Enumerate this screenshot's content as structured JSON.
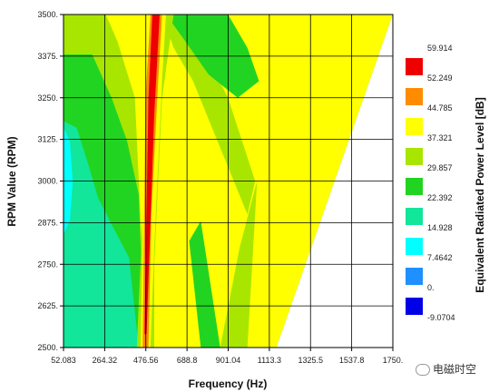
{
  "chart_data": {
    "type": "heatmap",
    "xlabel": "Frequency (Hz)",
    "ylabel": "RPM Value (RPM)",
    "x_ticks": [
      "52.083",
      "264.32",
      "476.56",
      "688.8",
      "901.04",
      "1113.3",
      "1325.5",
      "1537.8",
      "1750."
    ],
    "y_ticks": [
      "2500",
      "2625",
      "2750",
      "2875",
      "3000",
      "3125",
      "3250",
      "3375",
      "3500"
    ],
    "xlim": [
      52.083,
      1750
    ],
    "ylim": [
      2500,
      3500
    ],
    "grid": true,
    "colorbar": {
      "title": "Equivalent Radiated Power Level [dB]",
      "levels": [
        "59.914",
        "52.249",
        "44.785",
        "37.321",
        "29.857",
        "22.392",
        "14.928",
        "7.4642",
        "0.",
        "-9.0704"
      ],
      "colors": [
        "#ee0000",
        "#ff8c00",
        "#ffff00",
        "#a8e600",
        "#22d422",
        "#11e69a",
        "#00ffff",
        "#1e90ff",
        "#0000e6"
      ]
    },
    "regions": [
      {
        "level": 2,
        "points": [
          [
            52,
            3500
          ],
          [
            360,
            3500
          ],
          [
            560,
            3500
          ],
          [
            1000,
            3500
          ],
          [
            1380,
            3500
          ],
          [
            1000,
            2500
          ],
          [
            52,
            2500
          ]
        ]
      },
      {
        "level": 3,
        "points": [
          [
            52,
            3500
          ],
          [
            270,
            3500
          ],
          [
            330,
            3420
          ],
          [
            420,
            3250
          ],
          [
            480,
            2500
          ],
          [
            52,
            2500
          ]
        ]
      },
      {
        "level": 4,
        "points": [
          [
            52,
            3380
          ],
          [
            200,
            3380
          ],
          [
            300,
            3250
          ],
          [
            380,
            3120
          ],
          [
            440,
            2960
          ],
          [
            470,
            2500
          ],
          [
            52,
            2500
          ]
        ]
      },
      {
        "level": 5,
        "points": [
          [
            52,
            3180
          ],
          [
            120,
            3160
          ],
          [
            180,
            3050
          ],
          [
            230,
            2950
          ],
          [
            300,
            2870
          ],
          [
            390,
            2770
          ],
          [
            440,
            2500
          ],
          [
            52,
            2500
          ]
        ]
      },
      {
        "level": 6,
        "points": [
          [
            52,
            3160
          ],
          [
            85,
            3120
          ],
          [
            100,
            3000
          ],
          [
            85,
            2880
          ],
          [
            52,
            2840
          ]
        ]
      },
      {
        "level": 2,
        "points": [
          [
            1080,
            3500
          ],
          [
            1750,
            3500
          ],
          [
            1150,
            2500
          ],
          [
            1000,
            2500
          ],
          [
            1050,
            3000
          ],
          [
            960,
            3250
          ]
        ]
      },
      {
        "level": 3,
        "points": [
          [
            860,
            2500
          ],
          [
            960,
            2800
          ],
          [
            1050,
            3000
          ],
          [
            1000,
            2500
          ]
        ]
      },
      {
        "level": 3,
        "points": [
          [
            560,
            3500
          ],
          [
            680,
            3500
          ],
          [
            900,
            3250
          ],
          [
            1040,
            3000
          ],
          [
            1000,
            2900
          ],
          [
            860,
            3100
          ],
          [
            720,
            3300
          ],
          [
            620,
            3400
          ]
        ]
      },
      {
        "level": 4,
        "points": [
          [
            580,
            3500
          ],
          [
            900,
            3500
          ],
          [
            1000,
            3400
          ],
          [
            1060,
            3300
          ],
          [
            950,
            3250
          ],
          [
            800,
            3320
          ],
          [
            680,
            3420
          ]
        ]
      },
      {
        "level": 4,
        "points": [
          [
            760,
            2500
          ],
          [
            860,
            2500
          ],
          [
            760,
            2880
          ],
          [
            700,
            2820
          ]
        ]
      },
      {
        "level": 4,
        "points": [
          [
            540,
            3500
          ],
          [
            560,
            3500
          ],
          [
            560,
            3420
          ],
          [
            520,
            3250
          ],
          [
            500,
            3000
          ],
          [
            480,
            2500
          ],
          [
            430,
            2500
          ],
          [
            470,
            3000
          ]
        ]
      },
      {
        "level": 3,
        "points": [
          [
            430,
            2500
          ],
          [
            520,
            2500
          ],
          [
            520,
            2750
          ],
          [
            560,
            3250
          ],
          [
            620,
            3500
          ],
          [
            540,
            3500
          ],
          [
            490,
            3250
          ],
          [
            460,
            2900
          ]
        ]
      },
      {
        "level": 2,
        "points": [
          [
            450,
            2500
          ],
          [
            500,
            2500
          ],
          [
            520,
            2800
          ],
          [
            560,
            3300
          ],
          [
            580,
            3500
          ],
          [
            480,
            3500
          ],
          [
            470,
            3250
          ]
        ]
      },
      {
        "level": 1,
        "points": [
          [
            460,
            2500
          ],
          [
            490,
            2500
          ],
          [
            505,
            2900
          ],
          [
            540,
            3300
          ],
          [
            560,
            3500
          ],
          [
            500,
            3500
          ],
          [
            475,
            3250
          ]
        ]
      },
      {
        "level": 0,
        "points": [
          [
            470,
            2540
          ],
          [
            480,
            2540
          ],
          [
            520,
            3200
          ],
          [
            548,
            3500
          ],
          [
            510,
            3500
          ],
          [
            490,
            3250
          ]
        ]
      }
    ],
    "edge": [
      [
        1750,
        3500
      ],
      [
        1150,
        2500
      ]
    ]
  },
  "watermark": "电磁时空"
}
